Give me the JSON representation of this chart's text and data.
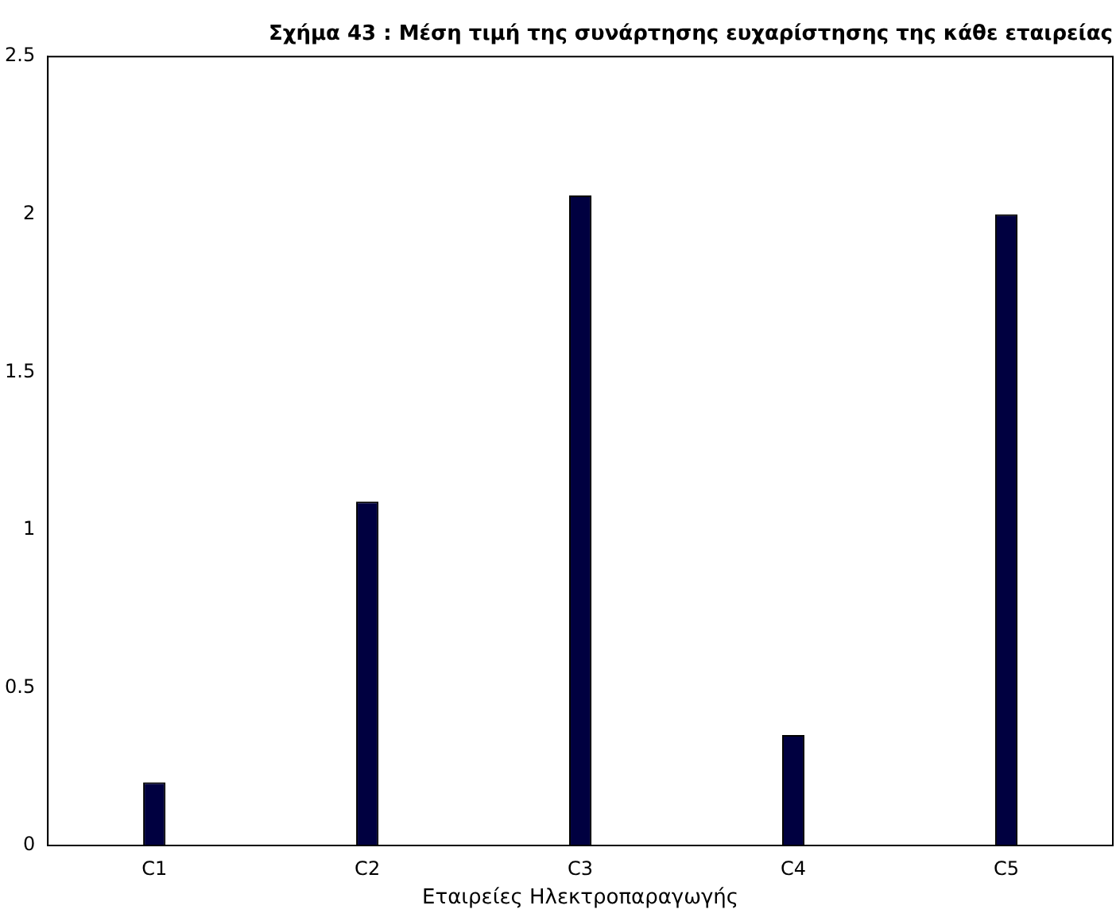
{
  "chart_data": {
    "type": "bar",
    "title": "Σχήμα 43 : Μέση τιμή της συνάρτησης ευχαρίστησης της κάθε εταιρείας",
    "xlabel": "Εταιρείες Ηλεκτροπαραγωγής",
    "categories": [
      "C1",
      "C2",
      "C3",
      "C4",
      "C5"
    ],
    "values": [
      0.2,
      1.09,
      2.06,
      0.35,
      2.0
    ],
    "color": "#000040",
    "ylim": [
      0,
      2.5
    ],
    "yticks": [
      0,
      0.5,
      1,
      1.5,
      2,
      2.5
    ],
    "grid": false,
    "legend": false
  }
}
